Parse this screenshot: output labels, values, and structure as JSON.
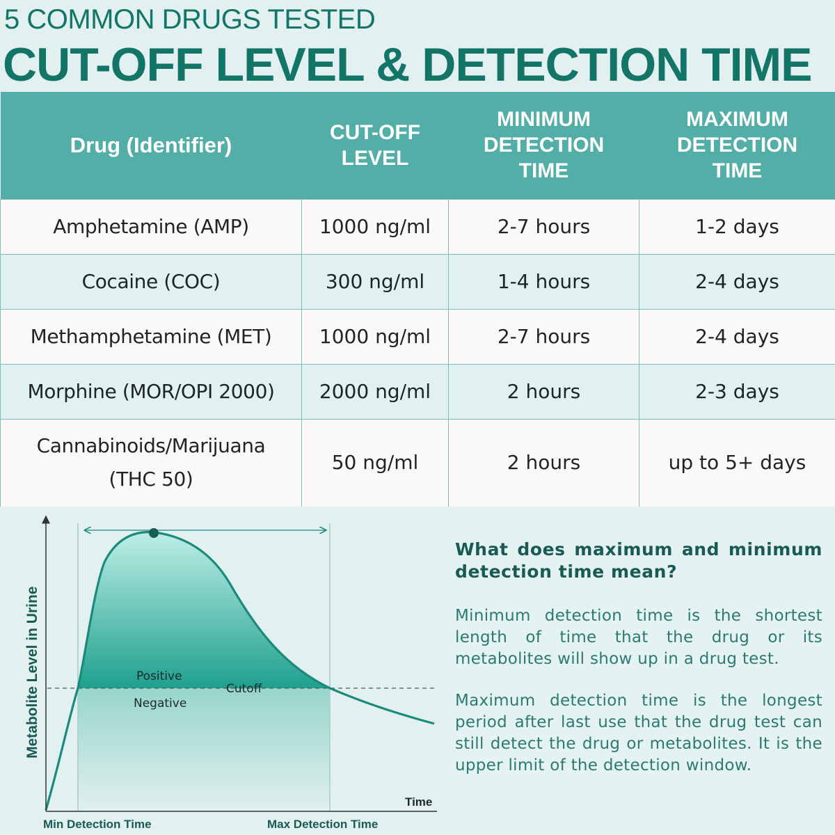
{
  "header": {
    "subtitle": "5 COMMON DRUGS TESTED",
    "title": "CUT-OFF LEVEL & DETECTION TIME"
  },
  "table": {
    "columns": [
      "Drug (Identifier)",
      "CUT-OFF LEVEL",
      "MINIMUM DETECTION TIME",
      "MAXIMUM DETECTION TIME"
    ],
    "rows": [
      {
        "drug": "Amphetamine (AMP)",
        "cutoff": "1000 ng/ml",
        "min": "2-7 hours",
        "max": "1-2 days"
      },
      {
        "drug": "Cocaine (COC)",
        "cutoff": "300 ng/ml",
        "min": "1-4 hours",
        "max": "2-4 days"
      },
      {
        "drug": "Methamphetamine (MET)",
        "cutoff": "1000 ng/ml",
        "min": "2-7 hours",
        "max": "2-4 days"
      },
      {
        "drug": "Morphine (MOR/OPI 2000)",
        "cutoff": "2000 ng/ml",
        "min": "2 hours",
        "max": "2-3 days"
      },
      {
        "drug": "Cannabinoids/Marijuana (THC 50)",
        "cutoff": "50 ng/ml",
        "min": "2 hours",
        "max": "up to 5+ days"
      }
    ]
  },
  "diagram": {
    "ylabel": "Metabolite Level in Urine",
    "xlabel": "Time",
    "positive_label": "Positive",
    "negative_label": "Negative",
    "cutoff_label": "Cutoff",
    "min_label": "Min Detection Time",
    "max_label": "Max Detection Time"
  },
  "info": {
    "heading": "What does maximum and minimum detection time mean?",
    "p1": "Minimum detection time is the shortest length of time that the drug or its metabolites will show up in a drug test.",
    "p2": "Maximum detection time is the longest period after last use that the drug test can still detect the drug or metabolites. It is the upper limit of the detection window."
  },
  "colors": {
    "accent": "#137468",
    "header_bg": "#52aea6",
    "curve": "#1a8a7c"
  }
}
